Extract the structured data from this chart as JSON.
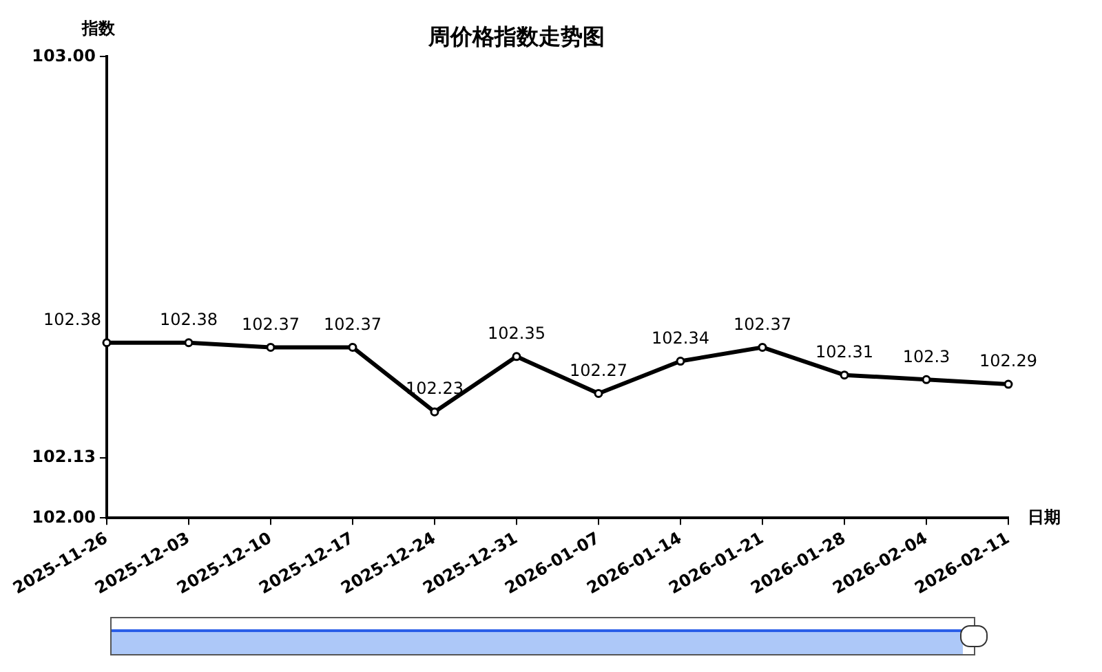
{
  "chart_data": {
    "type": "line",
    "title": "周价格指数走势图",
    "xlabel": "日期",
    "ylabel": "指数",
    "categories": [
      "2025-11-26",
      "2025-12-03",
      "2025-12-10",
      "2025-12-17",
      "2025-12-24",
      "2025-12-31",
      "2026-01-07",
      "2026-01-14",
      "2026-01-21",
      "2026-01-28",
      "2026-02-04",
      "2026-02-11"
    ],
    "series": [
      {
        "color": "#000000",
        "values": [
          102.38,
          102.38,
          102.37,
          102.37,
          102.23,
          102.35,
          102.27,
          102.34,
          102.37,
          102.31,
          102.3,
          102.29
        ]
      }
    ],
    "ylim": [
      102,
      103
    ],
    "yticks": [
      {
        "value": 102,
        "label": "102.00"
      },
      {
        "value": 102.13,
        "label": "102.13"
      },
      {
        "value": 103,
        "label": "103.00"
      }
    ],
    "data_labels": true,
    "grid": false,
    "legend": false,
    "marker": "circle",
    "line_style": "solid"
  }
}
